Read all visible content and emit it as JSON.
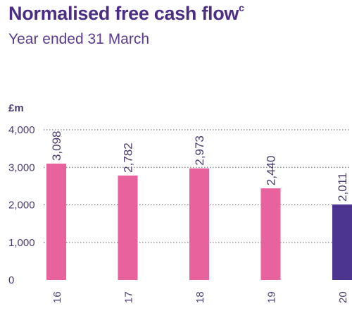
{
  "header": {
    "title": "Normalised free cash flow",
    "title_superscript": "c",
    "subtitle": "Year ended 31 March"
  },
  "chart_data": {
    "type": "bar",
    "ylabel": "£m",
    "categories": [
      "16",
      "17",
      "18",
      "19",
      "20"
    ],
    "values": [
      3098,
      2782,
      2973,
      2440,
      2011
    ],
    "value_labels": [
      "3,098",
      "2,782",
      "2,973",
      "2,440",
      "2,011"
    ],
    "ylim": [
      0,
      4000
    ],
    "yticks": [
      0,
      1000,
      2000,
      3000,
      4000
    ],
    "ytick_labels": [
      "0",
      "1,000",
      "2,000",
      "3,000",
      "4,000"
    ],
    "grid": true,
    "colors": {
      "default_bar": "#e8629e",
      "highlight_bar": "#4b3591",
      "text": "#4a3a6e",
      "grid": "#666666"
    },
    "highlight_index": 4
  }
}
